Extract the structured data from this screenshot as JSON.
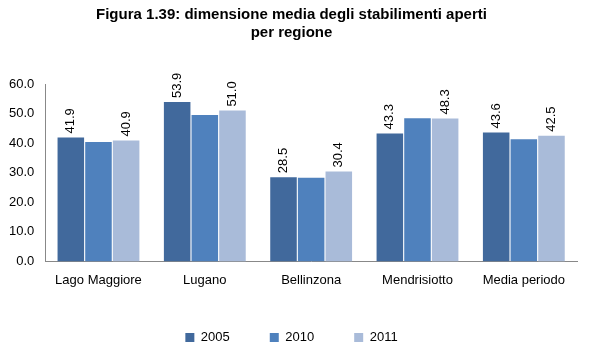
{
  "chart_data": {
    "type": "bar",
    "title": [
      "Figura 1.39: dimensione media degli stabilimenti aperti",
      "per regione"
    ],
    "categories": [
      "Lago Maggiore",
      "Lugano",
      "Bellinzona",
      "Mendrisiotto",
      "Media periodo"
    ],
    "series": [
      {
        "name": "2005",
        "color": "#41699c",
        "values": [
          41.9,
          53.9,
          28.5,
          43.3,
          43.6
        ],
        "value_labels": [
          "41.9",
          "53.9",
          "28.5",
          "43.3",
          "43.6"
        ]
      },
      {
        "name": "2010",
        "color": "#4f81bd",
        "values": [
          40.4,
          49.5,
          28.3,
          48.4,
          41.3
        ],
        "value_labels": [
          null,
          null,
          null,
          null,
          null
        ]
      },
      {
        "name": "2011",
        "color": "#a9bbd9",
        "values": [
          40.9,
          51.0,
          30.4,
          48.3,
          42.5
        ],
        "value_labels": [
          "40.9",
          "51.0",
          "30.4",
          "48.3",
          "42.5"
        ]
      }
    ],
    "ylim": [
      0,
      60
    ],
    "yticks": [
      {
        "value": 0,
        "label": "0.0"
      },
      {
        "value": 10,
        "label": "10.0"
      },
      {
        "value": 20,
        "label": "20.0"
      },
      {
        "value": 30,
        "label": "30.0"
      },
      {
        "value": 40,
        "label": "40.0"
      },
      {
        "value": 50,
        "label": "50.0"
      },
      {
        "value": 60,
        "label": "60.0"
      }
    ],
    "grid": false,
    "legend": "bottom",
    "data_labels": true
  }
}
